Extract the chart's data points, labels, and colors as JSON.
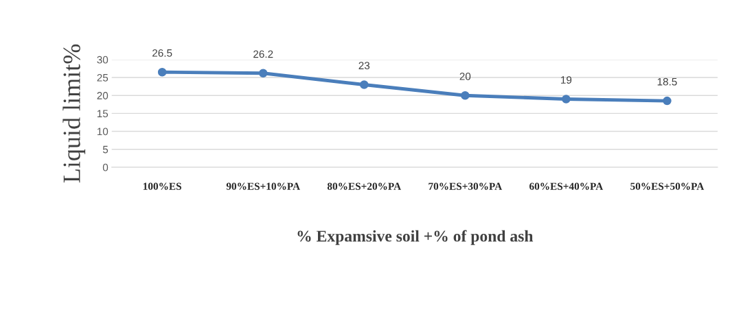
{
  "chart_data": {
    "type": "line",
    "xlabel": "% Expamsive soil +% of pond ash",
    "ylabel": "Liquid limit%",
    "categories": [
      "100%ES",
      "90%ES+10%PA",
      "80%ES+20%PA",
      "70%ES+30%PA",
      "60%ES+40%PA",
      "50%ES+50%PA"
    ],
    "series": [
      {
        "color": "#4a7ebb",
        "values": [
          26.5,
          26.2,
          23,
          20,
          19,
          18.5
        ]
      }
    ],
    "ylim": [
      0,
      30
    ],
    "yticks": [
      0,
      5,
      10,
      15,
      20,
      25,
      30
    ],
    "grid": "y",
    "marker": "circle",
    "line_style": "solid",
    "data_labels": true,
    "legend": false
  }
}
